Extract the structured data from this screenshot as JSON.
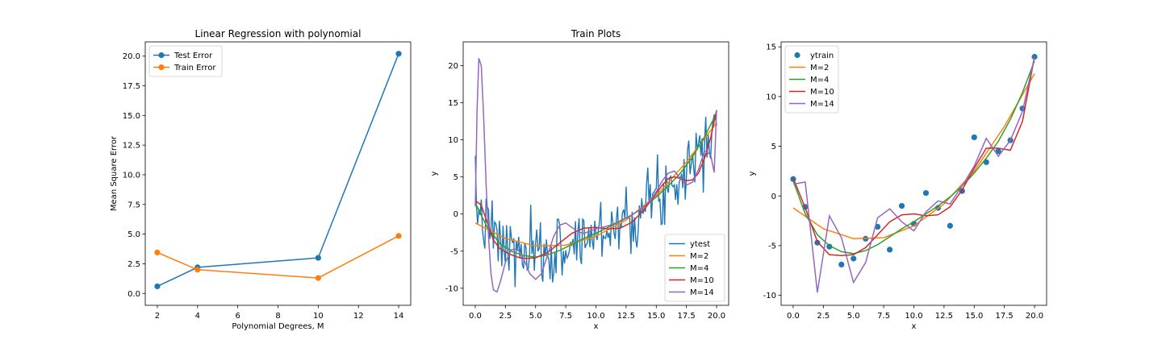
{
  "chart_data": [
    {
      "type": "line",
      "title": "Linear Regression with polynomial",
      "xlabel": "Polynomial Degrees, M",
      "ylabel": "Mean Square Error",
      "xlim": [
        1.4,
        14.6
      ],
      "ylim": [
        -1.0,
        21.2
      ],
      "xticks": [
        2,
        4,
        6,
        8,
        10,
        12,
        14
      ],
      "yticks": [
        0.0,
        2.5,
        5.0,
        7.5,
        10.0,
        12.5,
        15.0,
        17.5,
        20.0
      ],
      "ytick_format": "fixed1",
      "legend": "upper-left",
      "series": [
        {
          "name": "Test Error",
          "color": "#1f77b4",
          "marker": "circle",
          "x": [
            2,
            4,
            10,
            14
          ],
          "y": [
            0.6,
            2.2,
            3.0,
            20.2
          ]
        },
        {
          "name": "Train Error",
          "color": "#ff7f0e",
          "marker": "circle",
          "x": [
            2,
            4,
            10,
            14
          ],
          "y": [
            3.45,
            2.0,
            1.3,
            4.85
          ]
        }
      ]
    },
    {
      "type": "line",
      "title": "Train Plots",
      "xlabel": "x",
      "ylabel": "y",
      "xlim": [
        -1.0,
        21.0
      ],
      "ylim": [
        -12.3,
        23.2
      ],
      "xticks": [
        0.0,
        2.5,
        5.0,
        7.5,
        10.0,
        12.5,
        15.0,
        17.5,
        20.0
      ],
      "yticks": [
        -10,
        -5,
        0,
        5,
        10,
        15,
        20
      ],
      "xtick_format": "fixed1",
      "legend": "lower-right",
      "ytest_noise_seed": 7,
      "series": [
        {
          "name": "ytest",
          "color": "#1f77b4",
          "kind": "noisy"
        },
        {
          "name": "M=2",
          "color": "#ff7f0e",
          "x": [
            0,
            2.5,
            5,
            7.5,
            10,
            12.5,
            15,
            17.5,
            20
          ],
          "y": [
            -1.2,
            -3.3,
            -4.3,
            -4.2,
            -3.0,
            -0.8,
            2.5,
            7.0,
            12.3
          ]
        },
        {
          "name": "M=4",
          "color": "#2ca02c",
          "x": [
            0,
            1,
            2,
            3,
            4,
            5,
            6,
            7,
            8,
            9,
            10,
            11,
            12,
            13,
            14,
            15,
            16,
            17,
            18,
            19,
            20
          ],
          "y": [
            1.5,
            -1.8,
            -3.9,
            -5.0,
            -5.6,
            -5.8,
            -5.5,
            -4.9,
            -4.1,
            -3.3,
            -2.6,
            -1.8,
            -1.0,
            -0.1,
            1.0,
            2.3,
            3.8,
            5.5,
            7.7,
            10.4,
            13.6
          ]
        },
        {
          "name": "M=10",
          "color": "#d62728",
          "x": [
            0,
            0.5,
            1,
            1.5,
            2,
            2.5,
            3,
            3.5,
            4,
            5,
            6,
            7,
            8,
            9,
            10,
            11,
            12,
            13,
            14,
            15,
            15.5,
            16,
            16.5,
            17,
            17.5,
            18,
            18.5,
            19,
            19.5,
            20
          ],
          "y": [
            1.8,
            1.2,
            -1.2,
            -3.5,
            -4.6,
            -5.1,
            -5.5,
            -5.8,
            -6.0,
            -5.9,
            -5.2,
            -3.9,
            -2.6,
            -1.9,
            -1.8,
            -2.0,
            -1.9,
            -1.1,
            0.6,
            2.8,
            3.9,
            4.8,
            5.0,
            4.8,
            4.5,
            4.6,
            5.5,
            7.5,
            10.2,
            14.0
          ]
        },
        {
          "name": "M=14",
          "color": "#9467bd",
          "x": [
            0,
            0.15,
            0.3,
            0.5,
            0.7,
            0.9,
            1.1,
            1.3,
            1.5,
            1.8,
            2.1,
            2.5,
            3.0,
            3.5,
            4.0,
            4.5,
            5.0,
            5.5,
            6.0,
            6.5,
            7.0,
            7.5,
            8.0,
            8.5,
            9.0,
            9.5,
            10.0,
            10.5,
            11.0,
            11.5,
            12.0,
            12.5,
            13.0,
            13.5,
            14.0,
            14.5,
            15.0,
            15.5,
            16.0,
            16.5,
            17.0,
            17.5,
            18.0,
            18.5,
            19.0,
            19.5,
            19.8,
            20.0
          ],
          "y": [
            1.0,
            14.0,
            21.0,
            20.0,
            13.0,
            4.0,
            -3.0,
            -8.0,
            -10.2,
            -10.5,
            -9.0,
            -6.5,
            -4.8,
            -4.7,
            -6.0,
            -8.0,
            -8.8,
            -8.0,
            -5.5,
            -3.0,
            -1.5,
            -1.2,
            -1.8,
            -2.4,
            -2.6,
            -2.3,
            -2.0,
            -1.8,
            -1.6,
            -1.3,
            -0.9,
            -0.5,
            -0.1,
            0.4,
            1.0,
            1.8,
            3.0,
            4.5,
            5.5,
            5.8,
            4.8,
            3.9,
            4.3,
            6.0,
            8.5,
            8.0,
            5.6,
            14.0
          ]
        }
      ]
    },
    {
      "type": "line",
      "title": "",
      "xlabel": "x",
      "ylabel": "y",
      "xlim": [
        -1.0,
        21.0
      ],
      "ylim": [
        -11.0,
        15.5
      ],
      "xticks": [
        0.0,
        2.5,
        5.0,
        7.5,
        10.0,
        12.5,
        15.0,
        17.5,
        20.0
      ],
      "yticks": [
        -10,
        -5,
        0,
        5,
        10,
        15
      ],
      "xtick_format": "fixed1",
      "legend": "upper-left",
      "series": [
        {
          "name": "ytrain",
          "color": "#1f77b4",
          "kind": "scatter",
          "x": [
            0,
            1,
            2,
            3,
            4,
            5,
            6,
            7,
            8,
            9,
            10,
            11,
            12,
            13,
            14,
            15,
            16,
            17,
            18,
            19,
            20
          ],
          "y": [
            1.7,
            -1.1,
            -4.7,
            -5.1,
            -6.9,
            -6.3,
            -4.3,
            -3.1,
            -5.4,
            -1.0,
            -2.8,
            0.3,
            -1.2,
            -3.0,
            0.5,
            5.9,
            3.4,
            4.5,
            5.6,
            8.8,
            14.0
          ]
        },
        {
          "name": "M=2",
          "color": "#ff7f0e",
          "x": [
            0,
            2.5,
            5,
            7.5,
            10,
            12.5,
            15,
            17.5,
            20
          ],
          "y": [
            -1.2,
            -3.3,
            -4.3,
            -4.2,
            -3.0,
            -0.8,
            2.5,
            7.0,
            12.3
          ]
        },
        {
          "name": "M=4",
          "color": "#2ca02c",
          "x": [
            0,
            1,
            2,
            3,
            4,
            5,
            6,
            7,
            8,
            9,
            10,
            11,
            12,
            13,
            14,
            15,
            16,
            17,
            18,
            19,
            20
          ],
          "y": [
            1.5,
            -1.8,
            -3.9,
            -5.0,
            -5.6,
            -5.8,
            -5.5,
            -4.9,
            -4.1,
            -3.3,
            -2.6,
            -1.8,
            -1.0,
            -0.1,
            1.0,
            2.3,
            3.8,
            5.5,
            7.7,
            10.4,
            13.6
          ]
        },
        {
          "name": "M=10",
          "color": "#d62728",
          "x": [
            0,
            1,
            2,
            3,
            4,
            5,
            6,
            7,
            8,
            9,
            10,
            11,
            12,
            13,
            14,
            15,
            16,
            17,
            18,
            19,
            20
          ],
          "y": [
            1.8,
            -1.2,
            -4.6,
            -5.9,
            -6.0,
            -5.9,
            -5.2,
            -3.9,
            -2.6,
            -1.9,
            -1.8,
            -2.0,
            -1.9,
            -1.1,
            0.6,
            2.8,
            4.8,
            4.8,
            4.6,
            7.5,
            14.0
          ]
        },
        {
          "name": "M=14",
          "color": "#9467bd",
          "x": [
            0,
            1,
            2,
            3,
            4,
            5,
            6,
            7,
            8,
            9,
            10,
            11,
            12,
            13,
            14,
            15,
            16,
            17,
            18,
            19,
            20
          ],
          "y": [
            1.2,
            1.4,
            -9.7,
            -2.0,
            -4.2,
            -8.7,
            -6.7,
            -2.2,
            -1.3,
            -2.6,
            -3.5,
            -1.6,
            -0.5,
            -0.8,
            1.0,
            3.0,
            5.8,
            4.0,
            5.6,
            8.5,
            14.0
          ]
        }
      ]
    }
  ]
}
